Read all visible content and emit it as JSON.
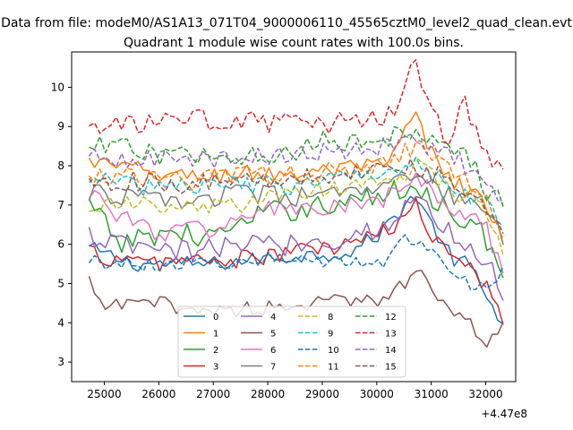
{
  "suptitle": "Data from file: modeM0/AS1A13_071T04_9000006110_45565cztM0_level2_quad_clean.evt",
  "chart_data": {
    "type": "line",
    "title": "Quadrant 1 module wise count rates with 100.0s bins.",
    "xlabel": "",
    "ylabel": "",
    "x_offset_label": "+4.47e8",
    "xlim": [
      24400,
      32550
    ],
    "ylim": [
      2.5,
      10.9
    ],
    "xticks": [
      25000,
      26000,
      27000,
      28000,
      29000,
      30000,
      31000,
      32000
    ],
    "xtick_labels": [
      "25000",
      "26000",
      "27000",
      "28000",
      "29000",
      "30000",
      "31000",
      "32000"
    ],
    "yticks": [
      3,
      4,
      5,
      6,
      7,
      8,
      9,
      10
    ],
    "ytick_labels": [
      "3",
      "4",
      "5",
      "6",
      "7",
      "8",
      "9",
      "10"
    ],
    "grid": false,
    "legend_position": "lower-center",
    "legend_columns": 4,
    "x_range": [
      24720,
      32320
    ],
    "x_step": 100,
    "series": [
      {
        "name": "0",
        "color": "#1f77b4",
        "dash": "solid",
        "anchors": [
          [
            24720,
            5.9
          ],
          [
            25500,
            5.5
          ],
          [
            27000,
            5.5
          ],
          [
            28500,
            5.7
          ],
          [
            29500,
            5.8
          ],
          [
            30000,
            6.2
          ],
          [
            30400,
            6.8
          ],
          [
            30700,
            7.3
          ],
          [
            31000,
            6.5
          ],
          [
            31400,
            5.6
          ],
          [
            31700,
            5.5
          ],
          [
            32000,
            4.6
          ],
          [
            32320,
            4.1
          ]
        ],
        "noise": 0.2
      },
      {
        "name": "1",
        "color": "#ff7f0e",
        "dash": "solid",
        "anchors": [
          [
            24720,
            8.1
          ],
          [
            25500,
            7.9
          ],
          [
            26500,
            7.7
          ],
          [
            27500,
            7.8
          ],
          [
            28500,
            7.8
          ],
          [
            29500,
            7.9
          ],
          [
            30200,
            8.0
          ],
          [
            30700,
            9.3
          ],
          [
            31000,
            8.3
          ],
          [
            31400,
            7.6
          ],
          [
            31800,
            7.3
          ],
          [
            32100,
            6.8
          ],
          [
            32320,
            6.0
          ]
        ],
        "noise": 0.25
      },
      {
        "name": "2",
        "color": "#2ca02c",
        "dash": "solid",
        "anchors": [
          [
            24720,
            7.0
          ],
          [
            25300,
            6.0
          ],
          [
            26000,
            6.3
          ],
          [
            27000,
            6.2
          ],
          [
            28000,
            6.8
          ],
          [
            29000,
            7.0
          ],
          [
            30000,
            7.2
          ],
          [
            30700,
            7.5
          ],
          [
            31200,
            7.0
          ],
          [
            31700,
            6.6
          ],
          [
            32000,
            6.2
          ],
          [
            32320,
            5.0
          ]
        ],
        "noise": 0.3
      },
      {
        "name": "3",
        "color": "#d62728",
        "dash": "solid",
        "anchors": [
          [
            24720,
            5.8
          ],
          [
            25500,
            5.5
          ],
          [
            26500,
            5.6
          ],
          [
            27500,
            5.6
          ],
          [
            28500,
            5.8
          ],
          [
            29500,
            6.0
          ],
          [
            30200,
            6.3
          ],
          [
            30700,
            7.0
          ],
          [
            31000,
            6.2
          ],
          [
            31500,
            5.8
          ],
          [
            32000,
            5.0
          ],
          [
            32320,
            4.2
          ]
        ],
        "noise": 0.25
      },
      {
        "name": "4",
        "color": "#9467bd",
        "dash": "solid",
        "anchors": [
          [
            24720,
            6.2
          ],
          [
            25500,
            5.9
          ],
          [
            26500,
            5.8
          ],
          [
            27500,
            6.0
          ],
          [
            28500,
            6.0
          ],
          [
            29500,
            6.2
          ],
          [
            30200,
            6.5
          ],
          [
            30700,
            7.2
          ],
          [
            31200,
            6.5
          ],
          [
            31700,
            5.9
          ],
          [
            32000,
            5.6
          ],
          [
            32320,
            4.7
          ]
        ],
        "noise": 0.3
      },
      {
        "name": "5",
        "color": "#8c564b",
        "dash": "solid",
        "anchors": [
          [
            24720,
            5.0
          ],
          [
            25000,
            4.4
          ],
          [
            26000,
            4.5
          ],
          [
            27000,
            4.3
          ],
          [
            28000,
            4.4
          ],
          [
            29000,
            4.5
          ],
          [
            30000,
            4.6
          ],
          [
            30500,
            5.0
          ],
          [
            30800,
            5.6
          ],
          [
            31100,
            4.5
          ],
          [
            31600,
            4.2
          ],
          [
            32000,
            3.5
          ],
          [
            32320,
            4.0
          ]
        ],
        "noise": 0.2
      },
      {
        "name": "6",
        "color": "#e377c2",
        "dash": "solid",
        "anchors": [
          [
            24720,
            7.4
          ],
          [
            25300,
            6.7
          ],
          [
            26000,
            6.3
          ],
          [
            27000,
            6.4
          ],
          [
            28000,
            6.9
          ],
          [
            29000,
            6.9
          ],
          [
            30000,
            7.0
          ],
          [
            30700,
            7.7
          ],
          [
            31200,
            7.1
          ],
          [
            31700,
            6.6
          ],
          [
            32000,
            6.5
          ],
          [
            32320,
            5.1
          ]
        ],
        "noise": 0.25
      },
      {
        "name": "7",
        "color": "#7f7f7f",
        "dash": "solid",
        "anchors": [
          [
            24720,
            7.3
          ],
          [
            25500,
            7.2
          ],
          [
            26500,
            7.1
          ],
          [
            27500,
            7.3
          ],
          [
            28500,
            7.2
          ],
          [
            29500,
            7.3
          ],
          [
            30200,
            7.4
          ],
          [
            30700,
            7.8
          ],
          [
            31200,
            7.3
          ],
          [
            31700,
            7.0
          ],
          [
            32000,
            6.8
          ],
          [
            32320,
            6.2
          ]
        ],
        "noise": 0.25
      },
      {
        "name": "8",
        "color": "#bcbd22",
        "dash": "dashed",
        "anchors": [
          [
            24720,
            7.0
          ],
          [
            25500,
            7.0
          ],
          [
            26500,
            6.9
          ],
          [
            27500,
            7.0
          ],
          [
            28500,
            7.3
          ],
          [
            29500,
            7.5
          ],
          [
            30200,
            7.6
          ],
          [
            30700,
            8.0
          ],
          [
            31200,
            7.5
          ],
          [
            31700,
            7.2
          ],
          [
            32000,
            6.9
          ],
          [
            32320,
            5.8
          ]
        ],
        "noise": 0.25
      },
      {
        "name": "9",
        "color": "#17becf",
        "dash": "dashed",
        "anchors": [
          [
            24720,
            7.7
          ],
          [
            25500,
            7.5
          ],
          [
            26500,
            7.5
          ],
          [
            27500,
            7.5
          ],
          [
            28500,
            7.5
          ],
          [
            29500,
            7.7
          ],
          [
            30200,
            7.9
          ],
          [
            30700,
            8.2
          ],
          [
            31200,
            7.6
          ],
          [
            31700,
            7.3
          ],
          [
            32000,
            7.0
          ],
          [
            32320,
            6.4
          ]
        ],
        "noise": 0.25
      },
      {
        "name": "10",
        "color": "#1f77b4",
        "dash": "dashed",
        "anchors": [
          [
            24720,
            5.6
          ],
          [
            25500,
            5.5
          ],
          [
            26500,
            5.5
          ],
          [
            27500,
            5.6
          ],
          [
            28500,
            5.6
          ],
          [
            29500,
            5.6
          ],
          [
            30000,
            5.4
          ],
          [
            30500,
            6.2
          ],
          [
            31000,
            6.0
          ],
          [
            31500,
            5.2
          ],
          [
            32000,
            4.8
          ],
          [
            32320,
            5.3
          ]
        ],
        "noise": 0.2
      },
      {
        "name": "11",
        "color": "#ff7f0e",
        "dash": "dashed",
        "anchors": [
          [
            24720,
            7.8
          ],
          [
            25500,
            7.7
          ],
          [
            26500,
            7.6
          ],
          [
            27500,
            7.8
          ],
          [
            28500,
            7.8
          ],
          [
            29500,
            7.9
          ],
          [
            30200,
            8.1
          ],
          [
            30700,
            8.5
          ],
          [
            31200,
            8.0
          ],
          [
            31700,
            7.6
          ],
          [
            32000,
            7.4
          ],
          [
            32320,
            6.3
          ]
        ],
        "noise": 0.25
      },
      {
        "name": "12",
        "color": "#2ca02c",
        "dash": "dashed",
        "anchors": [
          [
            24720,
            8.5
          ],
          [
            25500,
            8.4
          ],
          [
            26500,
            8.2
          ],
          [
            27500,
            8.3
          ],
          [
            28500,
            8.4
          ],
          [
            29000,
            8.6
          ],
          [
            30000,
            8.6
          ],
          [
            30700,
            9.0
          ],
          [
            31200,
            8.6
          ],
          [
            31700,
            8.2
          ],
          [
            32000,
            7.4
          ],
          [
            32320,
            7.0
          ]
        ],
        "noise": 0.28
      },
      {
        "name": "13",
        "color": "#d62728",
        "dash": "dashed",
        "anchors": [
          [
            24720,
            9.0
          ],
          [
            25500,
            9.0
          ],
          [
            26500,
            9.2
          ],
          [
            27500,
            9.1
          ],
          [
            28500,
            9.1
          ],
          [
            29500,
            9.1
          ],
          [
            30200,
            9.2
          ],
          [
            30700,
            10.5
          ],
          [
            31000,
            9.4
          ],
          [
            31300,
            8.6
          ],
          [
            31600,
            9.6
          ],
          [
            32000,
            8.3
          ],
          [
            32320,
            7.8
          ]
        ],
        "noise": 0.28
      },
      {
        "name": "14",
        "color": "#9467bd",
        "dash": "dashed",
        "anchors": [
          [
            24720,
            8.2
          ],
          [
            25500,
            8.2
          ],
          [
            26500,
            8.1
          ],
          [
            27500,
            8.2
          ],
          [
            28500,
            8.3
          ],
          [
            29500,
            8.4
          ],
          [
            30200,
            8.5
          ],
          [
            30700,
            8.6
          ],
          [
            31200,
            8.3
          ],
          [
            31700,
            8.0
          ],
          [
            32000,
            7.6
          ],
          [
            32320,
            6.8
          ]
        ],
        "noise": 0.25
      },
      {
        "name": "15",
        "color": "#8c564b",
        "dash": "dashed",
        "anchors": [
          [
            24720,
            7.6
          ],
          [
            25500,
            7.6
          ],
          [
            26500,
            7.5
          ],
          [
            27500,
            7.6
          ],
          [
            28500,
            7.7
          ],
          [
            29500,
            7.8
          ],
          [
            30200,
            7.9
          ],
          [
            30700,
            8.0
          ],
          [
            31200,
            7.7
          ],
          [
            31700,
            7.4
          ],
          [
            32000,
            7.0
          ],
          [
            32320,
            6.4
          ]
        ],
        "noise": 0.25
      }
    ]
  }
}
